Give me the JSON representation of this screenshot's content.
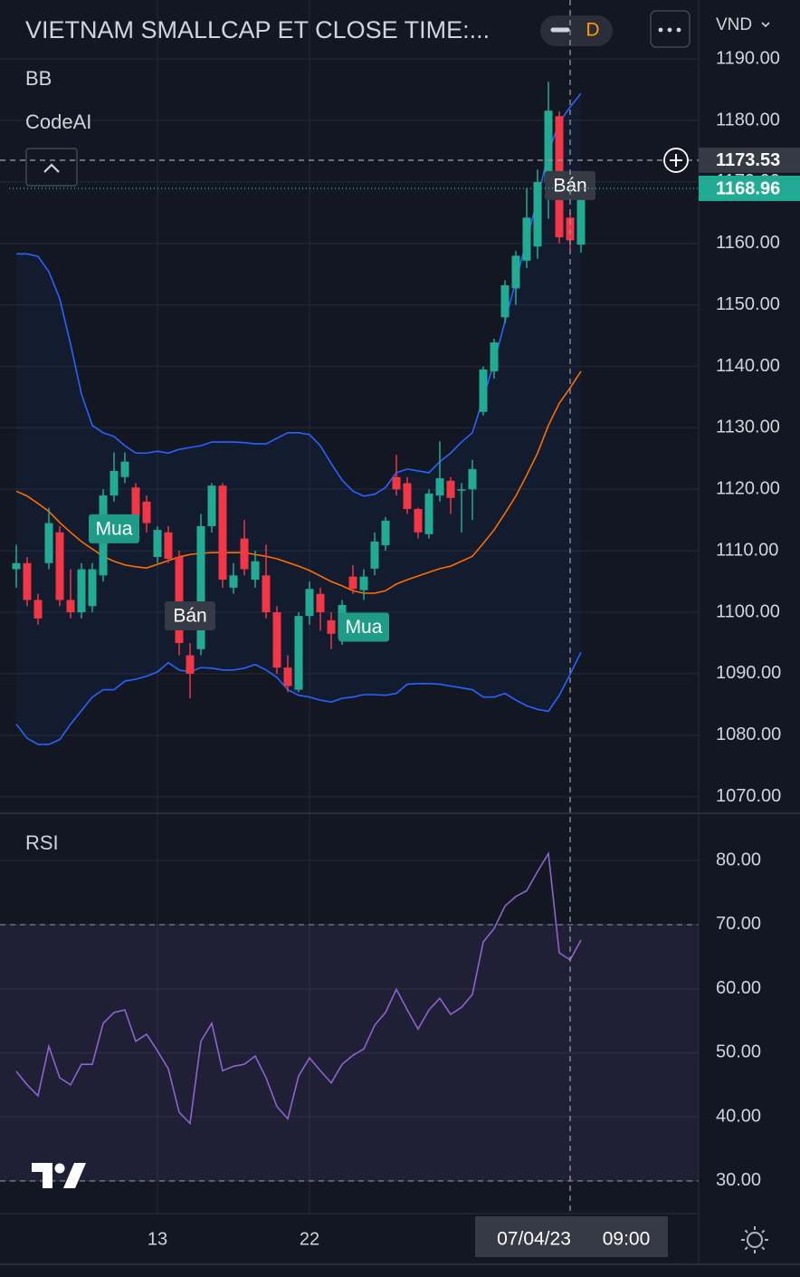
{
  "chart_data": [
    {
      "type": "candlestick",
      "title": "VIETNAM SMALLCAP ET CLOSE TIME:...",
      "interval": "D",
      "currency": "VND",
      "indicators": [
        "BB",
        "CodeAI"
      ],
      "categories": [
        null,
        null,
        null,
        null,
        null,
        null,
        null,
        null,
        null,
        null,
        null,
        null,
        null,
        "13",
        null,
        null,
        null,
        null,
        null,
        null,
        null,
        null,
        null,
        null,
        null,
        null,
        null,
        "22",
        null,
        null,
        null,
        null,
        null,
        null,
        null,
        null,
        null,
        null,
        null,
        null,
        null,
        null,
        null,
        null,
        null,
        null,
        null,
        null,
        null,
        null,
        null,
        null,
        null
      ],
      "open": [
        1107,
        1108,
        1102,
        1108,
        1113,
        1102,
        1100,
        1101,
        1106,
        1119,
        1122,
        1120.3,
        1118,
        1109,
        1113,
        1109,
        1093,
        1094,
        1114,
        1120.6,
        1104,
        1112,
        1105.3,
        1106,
        1100,
        1091,
        1087.4,
        1099.4,
        1103,
        1098.7,
        1095.7,
        1105.8,
        1103.6,
        1107.1,
        1110.9,
        1122,
        1121,
        1116.8,
        1112.7,
        1119,
        1121.4,
        1119.8,
        1120,
        1132.6,
        1139.2,
        1148,
        1152.7,
        1157.2,
        1159.5,
        1170,
        1180.7,
        1164.2,
        1159.8
      ],
      "high": [
        1111,
        1109,
        1103,
        1117,
        1114,
        1107,
        1108,
        1108,
        1120,
        1126,
        1126,
        1121,
        1119,
        1114,
        1114,
        1110,
        1095,
        1116,
        1121,
        1121,
        1108,
        1115,
        1110,
        1111,
        1101,
        1093,
        1100,
        1105,
        1104,
        1100,
        1102,
        1107.7,
        1107,
        1113,
        1115.5,
        1125.6,
        1122,
        1117,
        1120,
        1127.8,
        1122,
        1121,
        1124.8,
        1140,
        1144.5,
        1154,
        1158.8,
        1169,
        1172,
        1186.3,
        1181.5,
        1165,
        1169.5
      ],
      "low": [
        1104,
        1101,
        1098,
        1107,
        1101,
        1099,
        1099,
        1100,
        1105,
        1118,
        1121,
        1115,
        1113,
        1108,
        1108,
        1093,
        1086,
        1093,
        1113,
        1104,
        1103,
        1106,
        1104,
        1099,
        1090,
        1087,
        1087,
        1098,
        1097,
        1094,
        1094.7,
        1103,
        1102,
        1106,
        1110,
        1119,
        1116,
        1112,
        1112,
        1118,
        1116,
        1113,
        1115,
        1132,
        1138,
        1147,
        1150,
        1156,
        1157.5,
        1164,
        1160,
        1159,
        1158.5
      ],
      "close": [
        1108,
        1102,
        1099,
        1114.5,
        1102,
        1100,
        1107,
        1107,
        1119,
        1123,
        1124.5,
        1115.6,
        1114.5,
        1113.4,
        1108.7,
        1095,
        1090,
        1114,
        1120.6,
        1105.3,
        1106,
        1107,
        1108.3,
        1100,
        1091,
        1088,
        1099.4,
        1103.8,
        1100,
        1096.5,
        1101.2,
        1103.8,
        1105.8,
        1111.5,
        1114.9,
        1120,
        1116.8,
        1113,
        1119.3,
        1121.8,
        1118.6,
        1120,
        1123.3,
        1139.5,
        1143.9,
        1153.2,
        1158,
        1164.2,
        1170,
        1181.6,
        1161,
        1160.5,
        1168.96
      ],
      "up_color": "#22ab94",
      "down_color": "#f23645",
      "bollinger": {
        "upper": [
          1158.3,
          1158.3,
          1157.9,
          1155.4,
          1151,
          1143.6,
          1135.5,
          1130.4,
          1129.2,
          1128.6,
          1127.1,
          1125.9,
          1125.9,
          1126.2,
          1125.9,
          1126.5,
          1126.8,
          1127.1,
          1127.7,
          1127.7,
          1127.7,
          1127.6,
          1127.4,
          1127.4,
          1128.3,
          1129.2,
          1129.2,
          1128.9,
          1127.1,
          1124.2,
          1121.5,
          1119.7,
          1118.9,
          1119.2,
          1120.3,
          1122.7,
          1123.3,
          1123,
          1122.7,
          1124.5,
          1125.9,
          1127.7,
          1129.2,
          1134.8,
          1140.7,
          1147.3,
          1153.9,
          1160.5,
          1167.2,
          1174.8,
          1179.7,
          1182.2,
          1184.4
        ],
        "middle": [
          1119.7,
          1118.9,
          1117.7,
          1116.4,
          1114.6,
          1113,
          1111.5,
          1110.3,
          1109.1,
          1108.3,
          1107.7,
          1107.4,
          1107.2,
          1107.8,
          1108.4,
          1109,
          1109.4,
          1109.6,
          1109.7,
          1109.7,
          1109.7,
          1109.7,
          1109.4,
          1109.1,
          1108.7,
          1108.1,
          1107.5,
          1106.8,
          1105.9,
          1105,
          1104.3,
          1103.5,
          1103.1,
          1103.1,
          1103.5,
          1104.6,
          1105.3,
          1105.9,
          1106.5,
          1107.1,
          1107.5,
          1108.3,
          1109.1,
          1111.2,
          1113.4,
          1116.1,
          1118.9,
          1122.3,
          1125.9,
          1130.4,
          1134,
          1136.5,
          1139.2
        ],
        "lower": [
          1081.8,
          1079.5,
          1078.5,
          1078.5,
          1079.3,
          1081.8,
          1084,
          1086.2,
          1087.4,
          1087.4,
          1088.8,
          1089.1,
          1089.6,
          1090.3,
          1091.8,
          1090.6,
          1090.3,
          1091,
          1090.9,
          1090.6,
          1090.6,
          1090.9,
          1091.5,
          1090.6,
          1089.4,
          1087.4,
          1086.5,
          1086.2,
          1085.7,
          1085.4,
          1086,
          1086.2,
          1086.6,
          1086.6,
          1086.5,
          1086.8,
          1088.3,
          1088.4,
          1088.4,
          1088.3,
          1088,
          1087.7,
          1087.4,
          1086.2,
          1086.2,
          1086.8,
          1085.7,
          1084.8,
          1084.2,
          1083.9,
          1086.5,
          1089.9,
          1093.5
        ],
        "band_color": "#2962ff",
        "middle_color": "#ff6d00",
        "fill": "rgba(41,98,255,0.06)"
      },
      "signals": [
        null,
        null,
        null,
        null,
        null,
        null,
        null,
        null,
        null,
        {
          "label": "Mua",
          "color": "#1e9c87",
          "position": "below"
        },
        null,
        null,
        null,
        null,
        null,
        null,
        {
          "label": "Bán",
          "color": "#363a45",
          "position": "above"
        },
        null,
        null,
        null,
        null,
        null,
        null,
        null,
        null,
        null,
        null,
        null,
        null,
        null,
        null,
        null,
        {
          "label": "Mua",
          "color": "#1e9c87",
          "position": "below"
        },
        null,
        null,
        null,
        null,
        null,
        null,
        null,
        null,
        null,
        null,
        null,
        null,
        null,
        null,
        null,
        null,
        null,
        null,
        {
          "label": "Bán",
          "color": "#363a45",
          "position": "above"
        },
        null
      ],
      "last_price": 1168.96,
      "crosshair": {
        "price": 1173.53,
        "date": "07/04/23",
        "time": "09:00"
      },
      "ylim": [
        1067.3,
        1199.6
      ],
      "yticks": [
        {
          "value": 1190,
          "label": "1190.00"
        },
        {
          "value": 1180,
          "label": "1180.00"
        },
        {
          "value": 1170,
          "label": "1170.00"
        },
        {
          "value": 1160,
          "label": "1160.00"
        },
        {
          "value": 1150,
          "label": "1150.00"
        },
        {
          "value": 1140,
          "label": "1140.00"
        },
        {
          "value": 1130,
          "label": "1130.00"
        },
        {
          "value": 1120,
          "label": "1120.00"
        },
        {
          "value": 1110,
          "label": "1110.00"
        },
        {
          "value": 1100,
          "label": "1100.00"
        },
        {
          "value": 1090,
          "label": "1090.00"
        },
        {
          "value": 1080,
          "label": "1080.00"
        },
        {
          "value": 1070,
          "label": "1070.00"
        }
      ],
      "grid": true
    },
    {
      "type": "line",
      "name": "RSI",
      "values": [
        47.1,
        45,
        43.3,
        51,
        46.1,
        45,
        48.2,
        48.2,
        54.6,
        56.3,
        56.7,
        51.8,
        52.9,
        50.3,
        47.5,
        40.7,
        39,
        51.8,
        54.6,
        47.2,
        47.9,
        48.2,
        49.5,
        46.1,
        41.6,
        39.7,
        46.4,
        49.2,
        47.2,
        45.3,
        48.2,
        49.6,
        50.6,
        54.3,
        56.3,
        59.9,
        56.7,
        53.7,
        56.7,
        58.5,
        56,
        57.1,
        59.1,
        67.3,
        69.4,
        72.9,
        74.4,
        75.3,
        78.3,
        81.1,
        65.6,
        64.5,
        67.6
      ],
      "color": "#8e63d0",
      "levels": [
        70,
        30
      ],
      "band_fill": "rgba(126,87,194,0.12)",
      "ylim": [
        24.9,
        87.1
      ],
      "yticks": [
        {
          "value": 80,
          "label": "80.00"
        },
        {
          "value": 70,
          "label": "70.00"
        },
        {
          "value": 60,
          "label": "60.00"
        },
        {
          "value": 50,
          "label": "50.00"
        },
        {
          "value": 40,
          "label": "40.00"
        },
        {
          "value": 30,
          "label": "30.00"
        }
      ],
      "grid": true
    }
  ]
}
